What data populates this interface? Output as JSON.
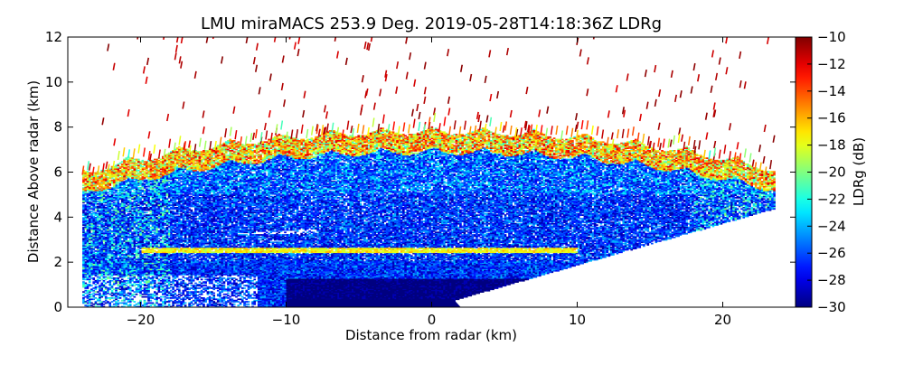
{
  "chart_data": {
    "type": "heatmap",
    "title": "LMU miraMACS 253.9 Deg. 2019-05-28T14:18:36Z  LDRg",
    "xlabel": "Distance from radar (km)",
    "ylabel": "Distance Above radar  (km)",
    "xlim": [
      -25,
      25
    ],
    "ylim": [
      0,
      12
    ],
    "xticks": [
      -20,
      -10,
      0,
      10,
      20
    ],
    "xtick_labels": [
      "−20",
      "−10",
      "0",
      "10",
      "20"
    ],
    "yticks": [
      0,
      2,
      4,
      6,
      8,
      10,
      12
    ],
    "ytick_labels": [
      "0",
      "2",
      "4",
      "6",
      "8",
      "10",
      "12"
    ],
    "colorbar": {
      "label": "LDRg (dB)",
      "range": [
        -30,
        -10
      ],
      "ticks": [
        -30,
        -28,
        -26,
        -24,
        -22,
        -20,
        -18,
        -16,
        -14,
        -12,
        -10
      ],
      "tick_labels": [
        "−30",
        "−28",
        "−26",
        "−24",
        "−22",
        "−20",
        "−18",
        "−16",
        "−14",
        "−12",
        "−10"
      ],
      "colormap": "jet"
    },
    "scan": {
      "azimuth_deg": 253.9,
      "range_x_km": [
        -24,
        23.5
      ],
      "dense_low_layer_km": [
        0,
        1.2
      ],
      "bright_band_height_km": 2.5,
      "cloud_top_km": 8.0,
      "scattered_echo_max_km": 12
    }
  }
}
